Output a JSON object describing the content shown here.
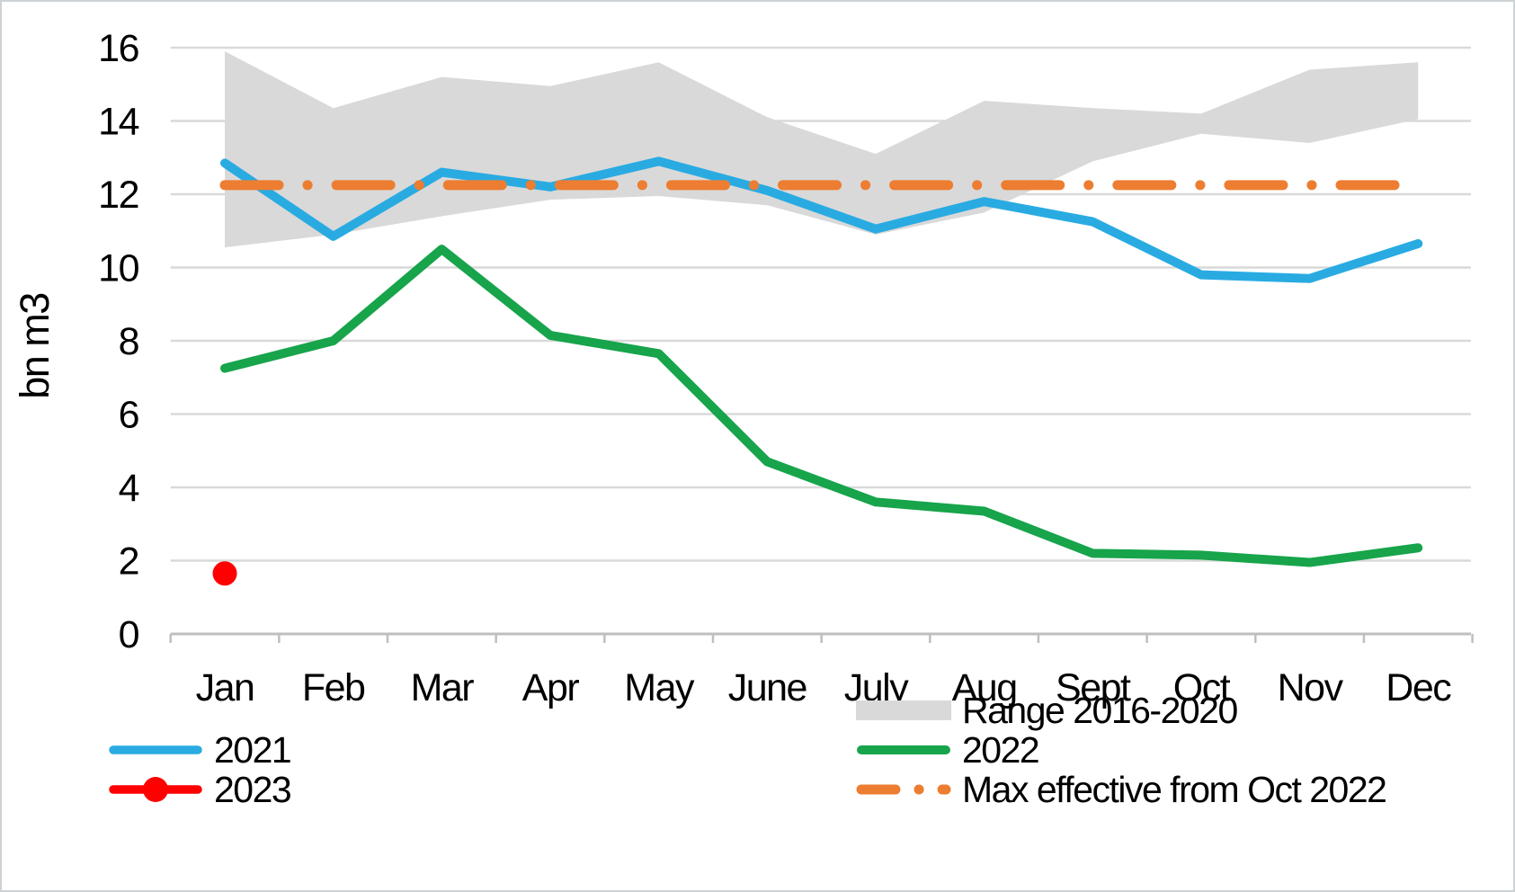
{
  "chart_data": {
    "type": "line",
    "title": "",
    "xlabel": "",
    "ylabel": "bn m3",
    "ylim": [
      0,
      16
    ],
    "ytick_step": 2,
    "ytick_labels": [
      "0",
      "2",
      "4",
      "6",
      "8",
      "10",
      "12",
      "14",
      "16"
    ],
    "grid": "horizontal",
    "legend_position": "bottom",
    "categories": [
      "Jan",
      "Feb",
      "Mar",
      "Apr",
      "May",
      "June",
      "July",
      "Aug",
      "Sept",
      "Oct",
      "Nov",
      "Dec"
    ],
    "series": [
      {
        "name": "Range 2016-2020",
        "type": "band",
        "color_key": "gray_range",
        "upper": [
          15.9,
          14.35,
          15.2,
          14.95,
          15.6,
          14.1,
          13.1,
          14.55,
          14.35,
          14.2,
          15.4,
          15.6
        ],
        "lower": [
          10.55,
          10.9,
          11.4,
          11.85,
          11.95,
          11.7,
          10.9,
          11.5,
          12.9,
          13.65,
          13.4,
          14.05
        ]
      },
      {
        "name": "2021",
        "type": "line",
        "color_key": "blue_2021",
        "values": [
          12.85,
          10.85,
          12.6,
          12.2,
          12.9,
          12.1,
          11.05,
          11.8,
          11.25,
          9.8,
          9.7,
          10.65
        ]
      },
      {
        "name": "2022",
        "type": "line",
        "color_key": "green_2022",
        "values": [
          7.25,
          8.0,
          10.5,
          8.15,
          7.65,
          4.7,
          3.6,
          3.35,
          2.2,
          2.15,
          1.95,
          2.35
        ]
      },
      {
        "name": "2023",
        "type": "point",
        "color_key": "red_2023",
        "values": [
          1.65,
          null,
          null,
          null,
          null,
          null,
          null,
          null,
          null,
          null,
          null,
          null
        ]
      },
      {
        "name": "Max effective from Oct 2022",
        "type": "dashdot_hline",
        "color_key": "orange_max",
        "value": 12.25
      }
    ]
  },
  "colors": {
    "blue_2021": "#29abe2",
    "green_2022": "#17a44b",
    "red_2023": "#fe0000",
    "orange_max": "#ed7d31",
    "gray_range": "#d9d9d9",
    "gridline": "#d9d9d9",
    "axis": "#bfbfbf",
    "text": "#000000"
  },
  "legend": {
    "left_items": [
      {
        "id": "y2021",
        "label": "2021"
      },
      {
        "id": "y2023",
        "label": "2023"
      }
    ],
    "right_items": [
      {
        "id": "range",
        "label": "Range 2016-2020"
      },
      {
        "id": "y2022",
        "label": "2022"
      },
      {
        "id": "max",
        "label": "Max effective from Oct 2022"
      }
    ]
  }
}
